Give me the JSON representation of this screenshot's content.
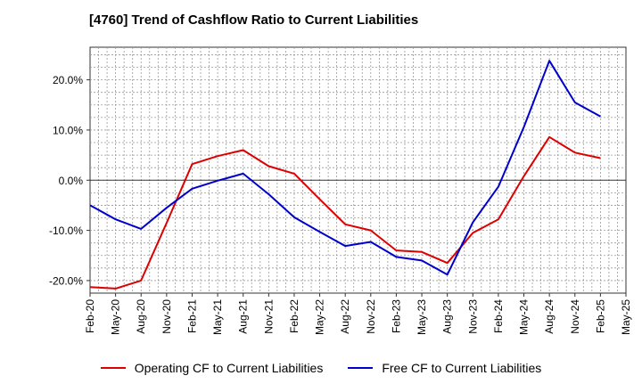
{
  "title": "[4760]  Trend of Cashflow Ratio to Current Liabilities",
  "chart_data": {
    "type": "line",
    "title": "[4760]  Trend of Cashflow Ratio to Current Liabilities",
    "x": [
      "Feb-20",
      "May-20",
      "Aug-20",
      "Nov-20",
      "Feb-21",
      "May-21",
      "Aug-21",
      "Nov-21",
      "Feb-22",
      "May-22",
      "Aug-22",
      "Nov-22",
      "Feb-23",
      "May-23",
      "Aug-23",
      "Nov-23",
      "Feb-24",
      "May-24",
      "Aug-24",
      "Nov-24",
      "Feb-25",
      "May-25"
    ],
    "ylim": [
      -22.5,
      26.5
    ],
    "yticks": [
      -20,
      -10,
      0,
      10,
      20
    ],
    "ytick_labels": [
      "-20.0%",
      "-10.0%",
      "0.0%",
      "10.0%",
      "20.0%"
    ],
    "grid": true,
    "legend_position": "bottom",
    "series": [
      {
        "name": "Operating CF to Current Liabilities",
        "color": "#dd0000",
        "values": [
          -21.3,
          -21.6,
          -20.0,
          -8.5,
          3.2,
          4.8,
          6.0,
          2.8,
          1.3,
          -3.8,
          -8.8,
          -10.0,
          -14.0,
          -14.3,
          -16.5,
          -10.5,
          -7.8,
          0.8,
          8.6,
          5.5,
          4.4,
          null
        ]
      },
      {
        "name": "Free CF to Current Liabilities",
        "color": "#0000cc",
        "values": [
          -5.0,
          -7.8,
          -9.7,
          -5.5,
          -1.7,
          -0.1,
          1.3,
          -2.8,
          -7.4,
          -10.3,
          -13.1,
          -12.3,
          -15.3,
          -16.0,
          -18.8,
          -8.4,
          -1.3,
          10.6,
          23.8,
          15.5,
          12.7,
          null
        ]
      }
    ]
  }
}
